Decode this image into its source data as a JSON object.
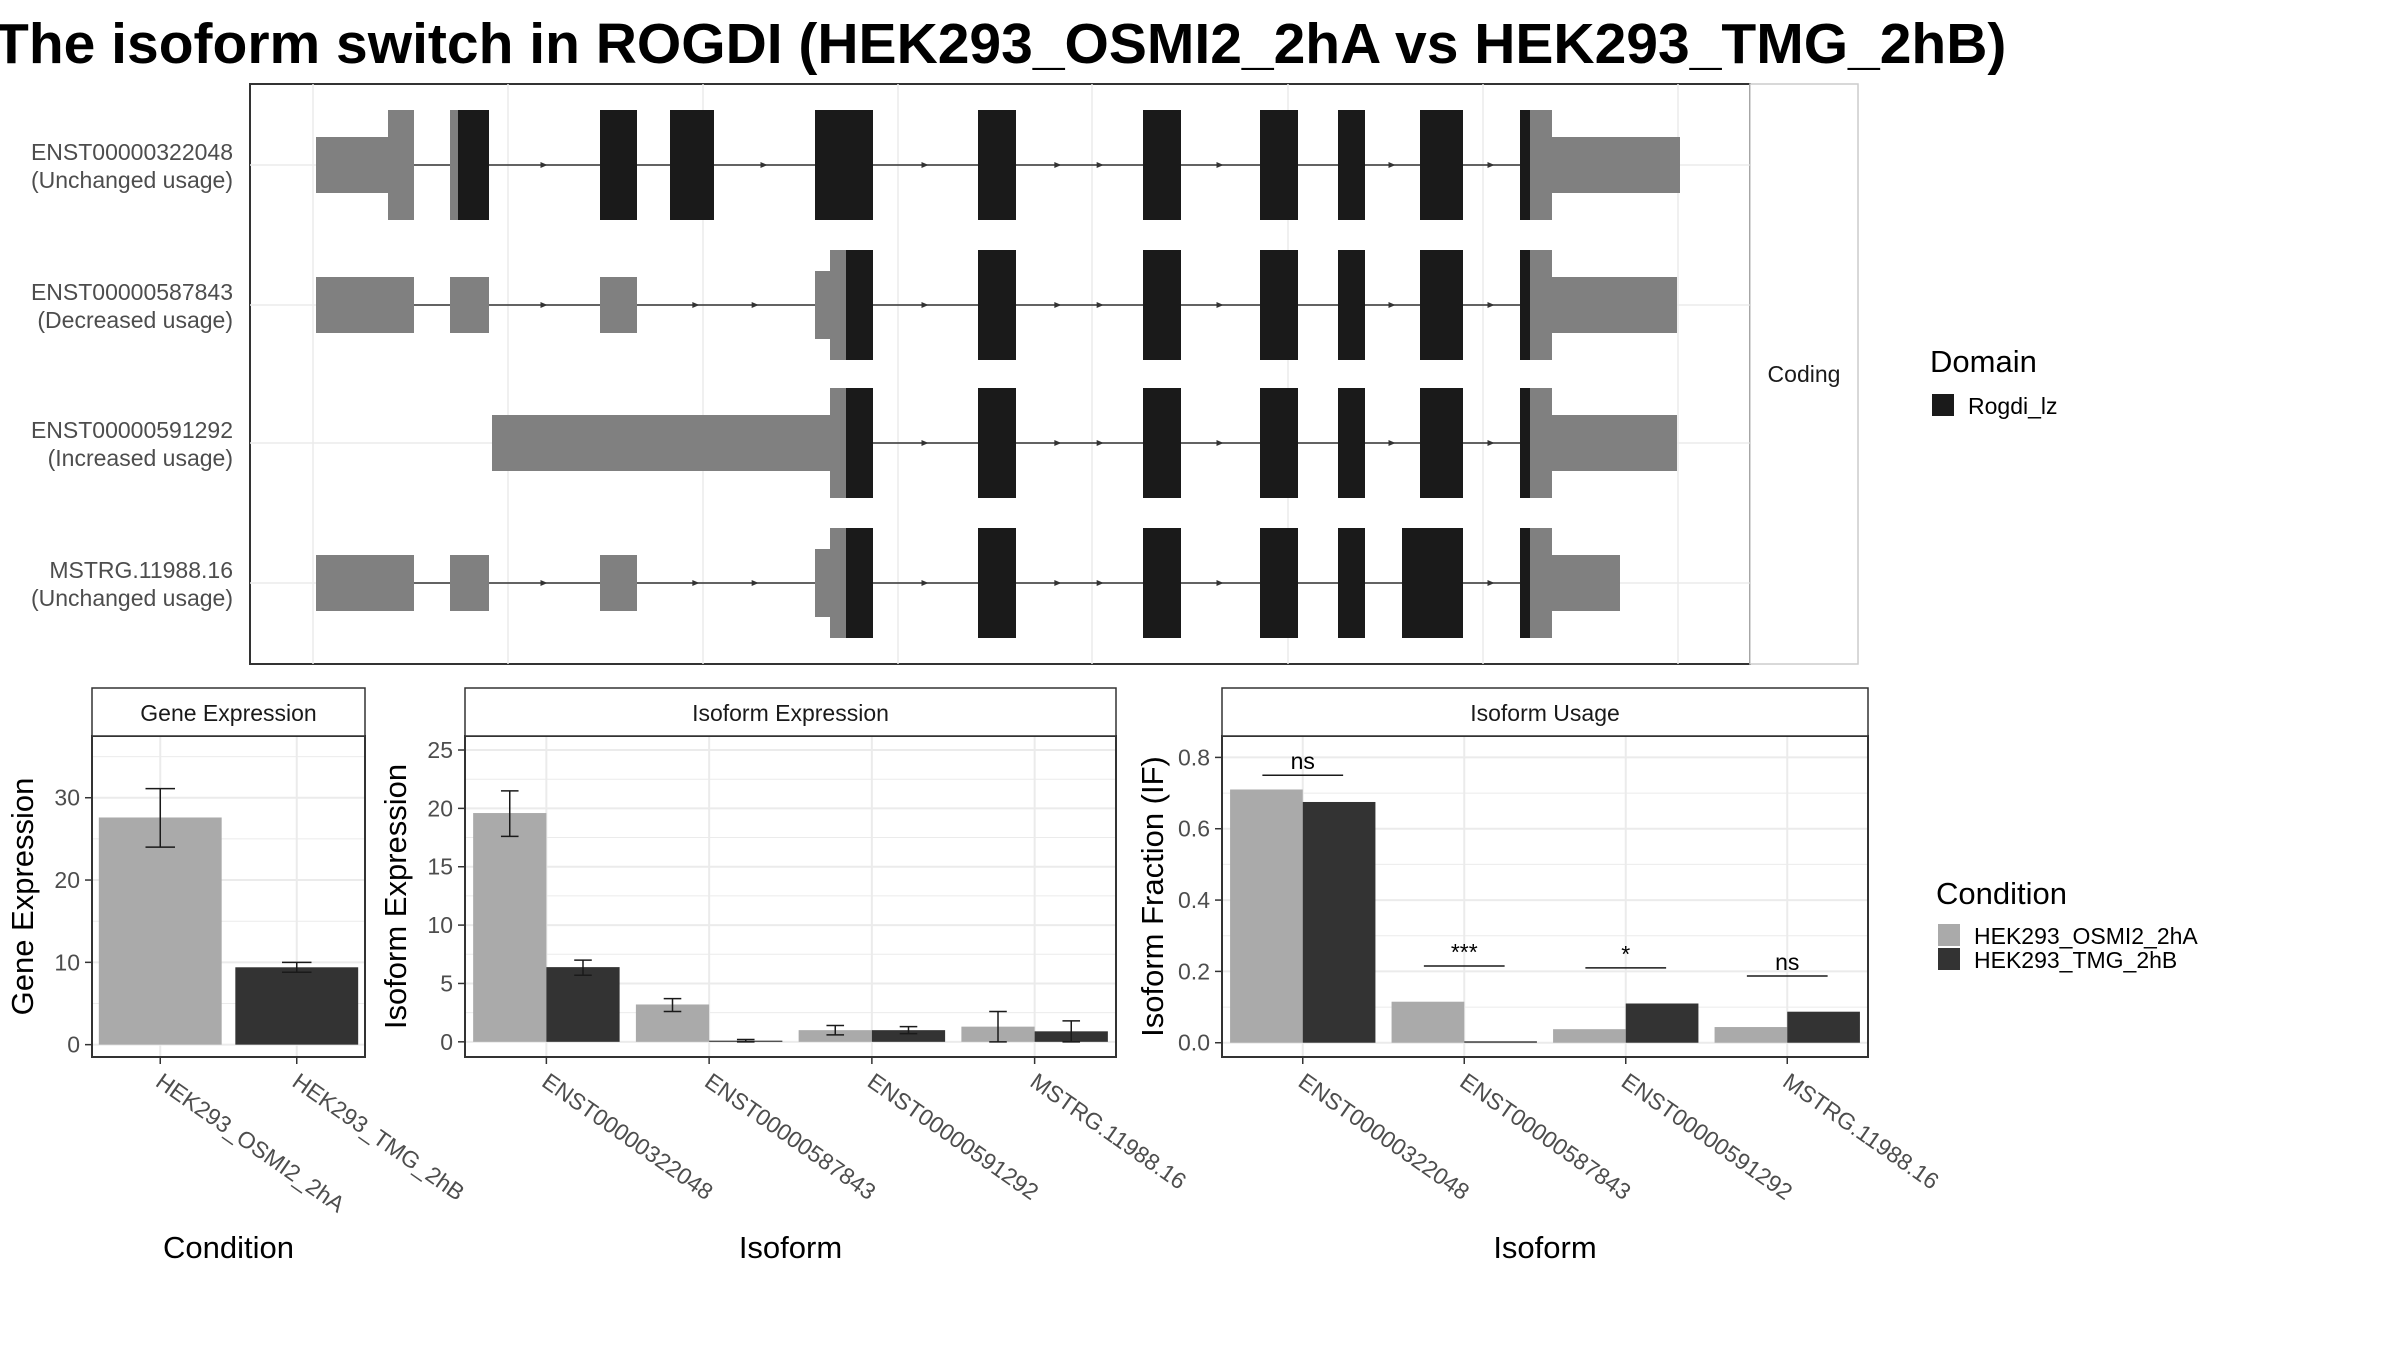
{
  "title": "The isoform switch in ROGDI (HEK293_OSMI2_2hA vs HEK293_TMG_2hB)",
  "colors": {
    "domain": "#1a1a1a",
    "utr": "#808080",
    "condition_a": "#aaaaaa",
    "condition_b": "#333333",
    "panel_border": "#333333",
    "grid": "#ebebeb"
  },
  "chart_data": [
    {
      "type": "transcript-structure",
      "facet_label": "Coding",
      "transcripts": [
        {
          "id": "ENST00000322048",
          "usage": "(Unchanged usage)"
        },
        {
          "id": "ENST00000587843",
          "usage": "(Decreased usage)"
        },
        {
          "id": "ENST00000591292",
          "usage": "(Increased usage)"
        },
        {
          "id": "MSTRG.11988.16",
          "usage": "(Unchanged usage)"
        }
      ],
      "legend": {
        "title": "Domain",
        "items": [
          {
            "label": "Rogdi_lz",
            "color": "#1a1a1a"
          }
        ]
      }
    },
    {
      "type": "bar",
      "title": "Gene Expression",
      "xlabel": "Condition",
      "ylabel": "Gene Expression",
      "categories": [
        "HEK293_OSMI2_2hA",
        "HEK293_TMG_2hB"
      ],
      "values": [
        27.6,
        9.4
      ],
      "error_low": [
        24.0,
        8.8
      ],
      "error_high": [
        31.1,
        10.0
      ],
      "ylim": [
        -1.5,
        37.5
      ],
      "yticks": [
        0,
        10,
        20,
        30
      ]
    },
    {
      "type": "bar",
      "title": "Isoform Expression",
      "xlabel": "Isoform",
      "ylabel": "Isoform Expression",
      "categories": [
        "ENST00000322048",
        "ENST00000587843",
        "ENST00000591292",
        "MSTRG.11988.16"
      ],
      "series": [
        {
          "name": "HEK293_OSMI2_2hA",
          "values": [
            19.6,
            3.2,
            1.0,
            1.3
          ],
          "error_low": [
            17.6,
            2.6,
            0.6,
            0.0
          ],
          "error_high": [
            21.5,
            3.7,
            1.4,
            2.6
          ]
        },
        {
          "name": "HEK293_TMG_2hB",
          "values": [
            6.4,
            0.1,
            1.0,
            0.9
          ],
          "error_low": [
            5.7,
            0.0,
            0.7,
            0.0
          ],
          "error_high": [
            7.0,
            0.2,
            1.3,
            1.8
          ]
        }
      ],
      "ylim": [
        -1.3,
        26.2
      ],
      "yticks": [
        0,
        5,
        10,
        15,
        20,
        25
      ]
    },
    {
      "type": "bar",
      "title": "Isoform Usage",
      "xlabel": "Isoform",
      "ylabel": "Isoform Fraction (IF)",
      "categories": [
        "ENST00000322048",
        "ENST00000587843",
        "ENST00000591292",
        "MSTRG.11988.16"
      ],
      "series": [
        {
          "name": "HEK293_OSMI2_2hA",
          "values": [
            0.71,
            0.115,
            0.038,
            0.044
          ]
        },
        {
          "name": "HEK293_TMG_2hB",
          "values": [
            0.675,
            0.004,
            0.11,
            0.087
          ]
        }
      ],
      "significance": [
        "ns",
        "***",
        "*",
        "ns"
      ],
      "ylim": [
        -0.04,
        0.86
      ],
      "yticks": [
        0.0,
        0.2,
        0.4,
        0.6,
        0.8
      ],
      "legend": {
        "title": "Condition",
        "items": [
          "HEK293_OSMI2_2hA",
          "HEK293_TMG_2hB"
        ]
      }
    }
  ]
}
